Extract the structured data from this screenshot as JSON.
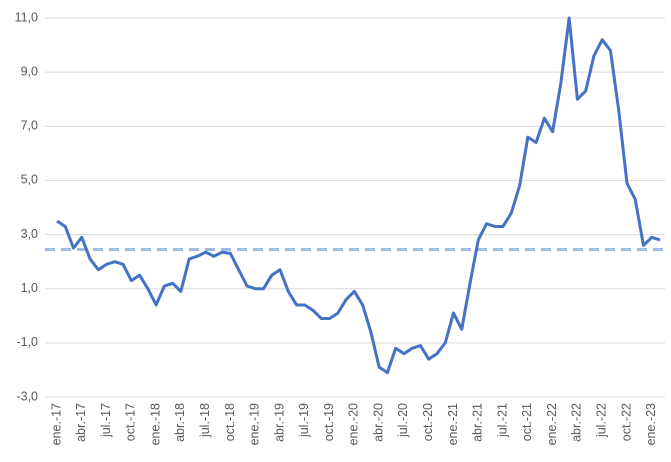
{
  "chart_data": {
    "type": "line",
    "categories": [
      "ene.-17",
      null,
      null,
      "abr.-17",
      null,
      null,
      "jul.-17",
      null,
      null,
      "oct.-17",
      null,
      null,
      "ene.-18",
      null,
      null,
      "abr.-18",
      null,
      null,
      "jul.-18",
      null,
      null,
      "oct.-18",
      null,
      null,
      "ene.-19",
      null,
      null,
      "abr.-19",
      null,
      null,
      "jul.-19",
      null,
      null,
      "oct.-19",
      null,
      null,
      "ene.-20",
      null,
      null,
      "abr.-20",
      null,
      null,
      "jul.-20",
      null,
      null,
      "oct.-20",
      null,
      null,
      "ene.-21",
      null,
      null,
      "abr.-21",
      null,
      null,
      "jul.-21",
      null,
      null,
      "oct.-21",
      null,
      null,
      "ene.-22",
      null,
      null,
      "abr.-22",
      null,
      null,
      "jul.-22",
      null,
      null,
      "oct.-22",
      null,
      null,
      "ene.-23",
      null
    ],
    "series": [
      {
        "color": "#4472c4",
        "values": [
          3.5,
          3.3,
          2.5,
          2.9,
          2.1,
          1.7,
          1.9,
          2.0,
          1.9,
          1.3,
          1.5,
          1.0,
          0.4,
          1.1,
          1.2,
          0.9,
          2.1,
          2.2,
          2.35,
          2.2,
          2.35,
          2.3,
          1.7,
          1.1,
          1.0,
          1.0,
          1.5,
          1.7,
          0.9,
          0.4,
          0.4,
          0.2,
          -0.1,
          -0.1,
          0.1,
          0.6,
          0.9,
          0.4,
          -0.6,
          -1.9,
          -2.1,
          -1.2,
          -1.4,
          -1.2,
          -1.1,
          -1.6,
          -1.4,
          -1.0,
          0.1,
          -0.5,
          1.2,
          2.8,
          3.4,
          3.3,
          3.3,
          3.8,
          4.8,
          6.6,
          6.4,
          7.3,
          6.8,
          8.6,
          11.0,
          8.0,
          8.3,
          9.6,
          10.2,
          9.8,
          7.6,
          4.9,
          4.3,
          2.6,
          2.9,
          2.8
        ]
      }
    ],
    "reference_line": {
      "value": 2.45,
      "color": "#9dbbe3"
    },
    "ylim": [
      -3,
      11
    ],
    "yticks": [
      {
        "value": -3,
        "label": "-3,0"
      },
      {
        "value": -1,
        "label": "-1,0"
      },
      {
        "value": 1,
        "label": "1,0"
      },
      {
        "value": 3,
        "label": "3,0"
      },
      {
        "value": 5,
        "label": "5,0"
      },
      {
        "value": 7,
        "label": "7,0"
      },
      {
        "value": 9,
        "label": "9,0"
      },
      {
        "value": 11,
        "label": "11,0"
      }
    ],
    "grid": true
  }
}
